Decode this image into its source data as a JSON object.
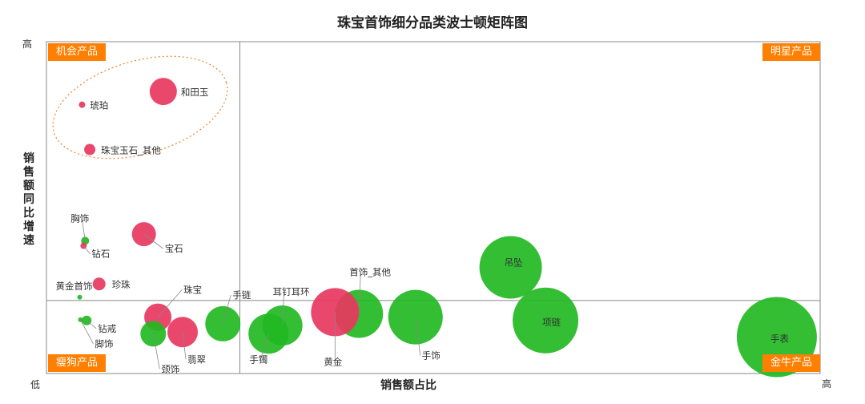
{
  "chart_data": {
    "type": "scatter",
    "title": "珠宝首饰细分品类波士顿矩阵图",
    "xlabel": "销售额占比",
    "ylabel": "销售额同比增速",
    "x_low_label": "低",
    "x_high_label": "高",
    "y_high_label": "高",
    "xlim": [
      0,
      100
    ],
    "ylim": [
      0,
      100
    ],
    "x_divider": 25,
    "y_divider": 22,
    "quadrants": {
      "opportunity": "机会产品",
      "star": "明星产品",
      "dog": "瘦狗产品",
      "cash_cow": "金牛产品"
    },
    "colors": {
      "growth": "#e8375f",
      "decline": "#22b822",
      "quadrant_label": "#ff7f00",
      "ellipse": "#f08a3a"
    },
    "points": [
      {
        "name": "和田玉",
        "x": 15.1,
        "y": 85.0,
        "size": 17,
        "color": "#e8375f"
      },
      {
        "name": "琥珀",
        "x": 4.6,
        "y": 81.0,
        "size": 4,
        "color": "#e8375f"
      },
      {
        "name": "珠宝玉石_其他",
        "x": 5.6,
        "y": 67.5,
        "size": 7,
        "color": "#e8375f"
      },
      {
        "name": "胸饰",
        "x": 5.0,
        "y": 40.0,
        "size": 5,
        "color": "#22b822"
      },
      {
        "name": "宝石",
        "x": 12.6,
        "y": 42.0,
        "size": 15,
        "color": "#e8375f"
      },
      {
        "name": "钻石",
        "x": 4.8,
        "y": 38.5,
        "size": 4,
        "color": "#e8375f"
      },
      {
        "name": "黄金首饰",
        "x": 4.3,
        "y": 23.0,
        "size": 3,
        "color": "#22b822"
      },
      {
        "name": "珍珠",
        "x": 6.8,
        "y": 27.0,
        "size": 8,
        "color": "#e8375f"
      },
      {
        "name": "钻戒",
        "x": 5.2,
        "y": 16.0,
        "size": 6,
        "color": "#22b822"
      },
      {
        "name": "脚饰",
        "x": 4.4,
        "y": 16.2,
        "size": 3,
        "color": "#22b822"
      },
      {
        "name": "珠宝",
        "x": 14.4,
        "y": 17.0,
        "size": 17,
        "color": "#e8375f"
      },
      {
        "name": "颈饰",
        "x": 13.8,
        "y": 12.0,
        "size": 16,
        "color": "#22b822"
      },
      {
        "name": "翡翠",
        "x": 17.6,
        "y": 12.5,
        "size": 19,
        "color": "#e8375f"
      },
      {
        "name": "手链",
        "x": 22.8,
        "y": 15.0,
        "size": 22,
        "color": "#22b822"
      },
      {
        "name": "手镯",
        "x": 28.7,
        "y": 12.0,
        "size": 25,
        "color": "#22b822"
      },
      {
        "name": "耳钉耳环",
        "x": 30.5,
        "y": 14.5,
        "size": 25,
        "color": "#22b822"
      },
      {
        "name": "首饰_其他",
        "x": 40.4,
        "y": 18.0,
        "size": 30,
        "color": "#22b822"
      },
      {
        "name": "黄金",
        "x": 37.3,
        "y": 18.5,
        "size": 30,
        "color": "#e8375f"
      },
      {
        "name": "手饰",
        "x": 47.7,
        "y": 17.0,
        "size": 34,
        "color": "#22b822"
      },
      {
        "name": "吊坠",
        "x": 60.0,
        "y": 32.0,
        "size": 39,
        "color": "#22b822"
      },
      {
        "name": "项链",
        "x": 64.5,
        "y": 16.0,
        "size": 41,
        "color": "#22b822"
      },
      {
        "name": "手表",
        "x": 94.4,
        "y": 11.0,
        "size": 50,
        "color": "#22b822"
      }
    ],
    "annotation": "opportunity group highlighted with dotted ellipse"
  }
}
